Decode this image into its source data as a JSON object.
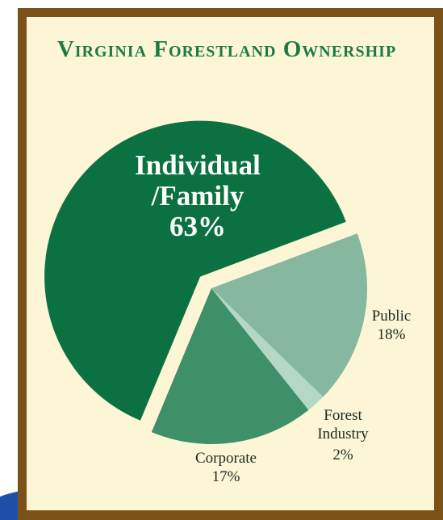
{
  "chart_data": {
    "type": "pie",
    "title": "Virginia Forestland Ownership",
    "categories": [
      "Individual /Family",
      "Public",
      "Forest Industry",
      "Corporate"
    ],
    "values": [
      63,
      18,
      2,
      17
    ],
    "value_labels": [
      "63%",
      "18%",
      "2%",
      "17%"
    ],
    "colors": [
      "#0c7140",
      "#86b79f",
      "#b5d8c5",
      "#3d9068"
    ],
    "exploded": [
      true,
      false,
      false,
      false
    ]
  }
}
